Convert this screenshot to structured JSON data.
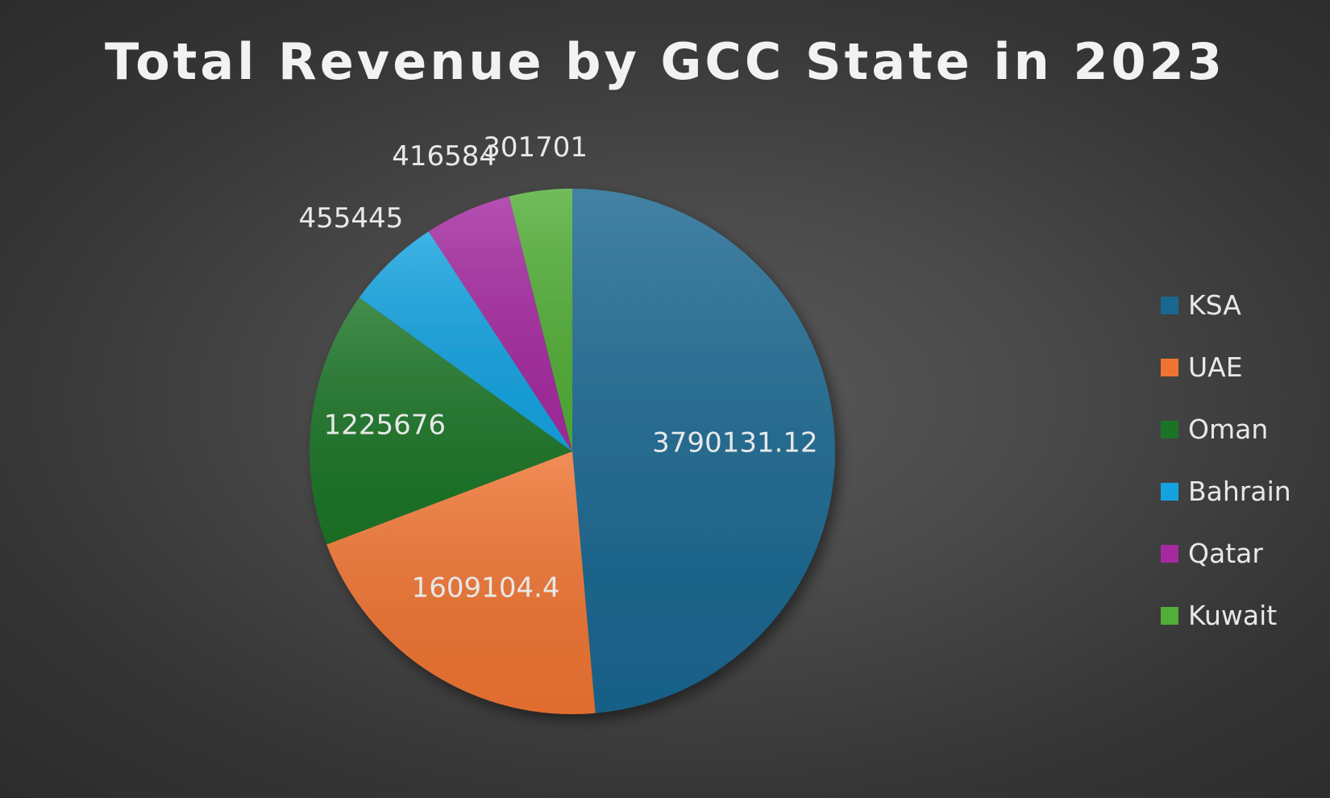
{
  "chart_data": {
    "type": "pie",
    "title": "Total Revenue by GCC State in 2023",
    "categories": [
      "KSA",
      "UAE",
      "Oman",
      "Bahrain",
      "Qatar",
      "Kuwait"
    ],
    "values": [
      3790131.12,
      1609104.4,
      1225676,
      455445,
      416584,
      301701
    ],
    "value_labels": [
      "3790131.12",
      "1609104.4",
      "1225676",
      "455445",
      "416584",
      "301701"
    ],
    "colors": [
      "#1a6790",
      "#ef7432",
      "#1b7426",
      "#14a3e0",
      "#a52aa0",
      "#52ae37"
    ],
    "start_angle_deg": 0,
    "direction": "clockwise",
    "legend_position": "right"
  }
}
